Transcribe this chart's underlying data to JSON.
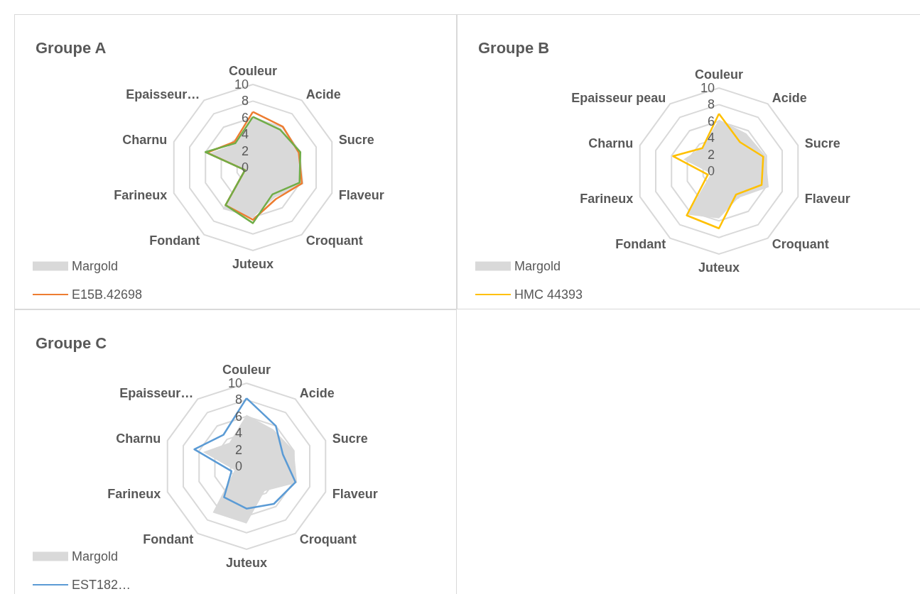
{
  "chart_data": [
    {
      "type": "radar",
      "title": "Groupe A",
      "categories": [
        "Couleur",
        "Acide",
        "Sucre",
        "Flaveur",
        "Croquant",
        "Juteux",
        "Fondant",
        "Farineux",
        "Charnu",
        "Epaisseur…"
      ],
      "ylim": [
        0,
        10
      ],
      "yticks": [
        0,
        2,
        4,
        6,
        8,
        10
      ],
      "grid": true,
      "legend": "bottom left",
      "marker": "none",
      "series": [
        {
          "name": "Margold",
          "type": "area",
          "color": "#d9d9d9",
          "values": [
            6.2,
            5.8,
            6.0,
            6.4,
            4.5,
            6.0,
            6.2,
            1.0,
            5.5,
            3.5
          ]
        },
        {
          "name": "E15B.42698",
          "color": "#ed7d31",
          "values": [
            6.7,
            6.1,
            5.8,
            6.2,
            4.7,
            6.3,
            5.6,
            1.0,
            5.8,
            3.8
          ]
        },
        {
          "color": "#70ad47",
          "values": [
            6.1,
            5.6,
            6.0,
            5.9,
            4.0,
            6.7,
            5.6,
            1.0,
            6.0,
            3.6
          ]
        }
      ]
    },
    {
      "type": "radar",
      "title": "Groupe B",
      "categories": [
        "Couleur",
        "Acide",
        "Sucre",
        "Flaveur",
        "Croquant",
        "Juteux",
        "Fondant",
        "Farineux",
        "Charnu",
        "Epaisseur peau"
      ],
      "ylim": [
        0,
        10
      ],
      "yticks": [
        0,
        2,
        4,
        6,
        8,
        10
      ],
      "grid": true,
      "legend": "bottom left",
      "marker": "none",
      "series": [
        {
          "name": "Margold",
          "type": "area",
          "color": "#d9d9d9",
          "values": [
            6.2,
            5.6,
            5.9,
            6.3,
            4.0,
            5.7,
            6.5,
            1.0,
            4.5,
            3.5
          ]
        },
        {
          "name": "HMC 44393",
          "color": "#ffc000",
          "values": [
            6.9,
            4.3,
            5.6,
            5.4,
            3.5,
            6.9,
            6.6,
            1.4,
            5.8,
            3.4
          ]
        }
      ]
    },
    {
      "type": "radar",
      "title": "Groupe C",
      "categories": [
        "Couleur",
        "Acide",
        "Sucre",
        "Flaveur",
        "Croquant",
        "Juteux",
        "Fondant",
        "Farineux",
        "Charnu",
        "Epaisseur…"
      ],
      "ylim": [
        0,
        10
      ],
      "yticks": [
        0,
        2,
        4,
        6,
        8,
        10
      ],
      "grid": true,
      "legend": "bottom left",
      "marker": "none",
      "series": [
        {
          "name": "Margold",
          "type": "area",
          "color": "#d9d9d9",
          "values": [
            6.2,
            5.5,
            6.0,
            6.4,
            3.7,
            6.9,
            6.9,
            1.5,
            5.5,
            3.5
          ]
        },
        {
          "name": "EST182…",
          "color": "#5b9bd5",
          "values": [
            8.2,
            6.0,
            4.6,
            6.2,
            5.6,
            5.1,
            4.6,
            1.9,
            6.6,
            4.7
          ]
        }
      ]
    }
  ]
}
